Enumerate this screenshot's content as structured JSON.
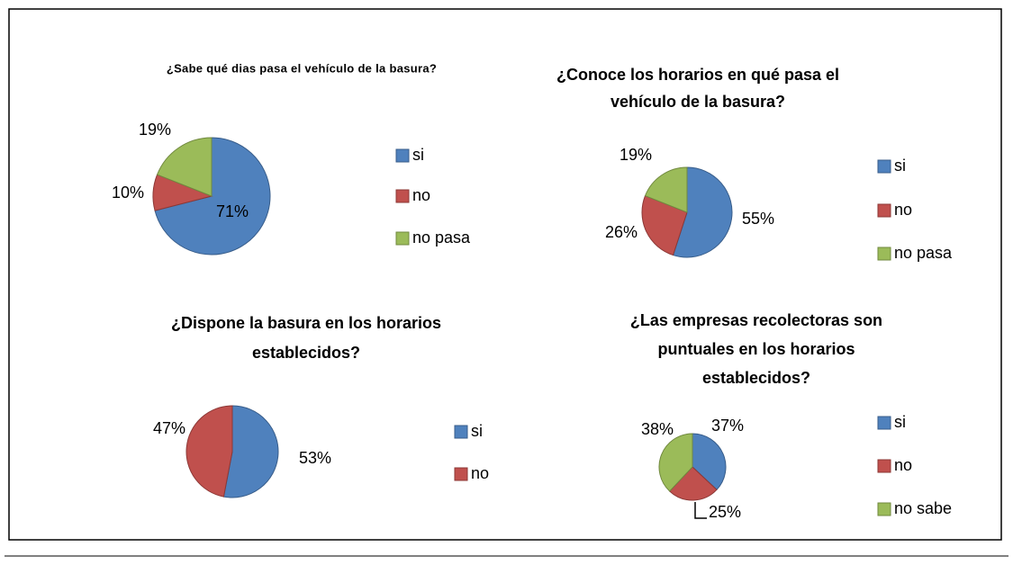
{
  "chart_data": [
    {
      "type": "pie",
      "title": [
        "¿Sabe qué dias pasa el vehículo de la basura?"
      ],
      "categories": [
        "si",
        "no",
        "no pasa"
      ],
      "values": [
        71,
        10,
        19
      ],
      "value_labels": [
        "71%",
        "10%",
        "19%"
      ],
      "colors": [
        "#4f81bd",
        "#c0504d",
        "#9bbb59"
      ],
      "legend": "right"
    },
    {
      "type": "pie",
      "title": [
        "¿Conoce los horarios en qué pasa el",
        "vehículo de la basura?"
      ],
      "categories": [
        "si",
        "no",
        "no pasa"
      ],
      "values": [
        55,
        26,
        19
      ],
      "value_labels": [
        "55%",
        "26%",
        "19%"
      ],
      "colors": [
        "#4f81bd",
        "#c0504d",
        "#9bbb59"
      ],
      "legend": "right"
    },
    {
      "type": "pie",
      "title": [
        "¿Dispone la basura en los horarios",
        "establecidos?"
      ],
      "categories": [
        "si",
        "no"
      ],
      "values": [
        53,
        47
      ],
      "value_labels": [
        "53%",
        "47%"
      ],
      "colors": [
        "#4f81bd",
        "#c0504d"
      ],
      "legend": "right"
    },
    {
      "type": "pie",
      "title": [
        "¿Las empresas recolectoras son",
        "puntuales en los horarios",
        "establecidos?"
      ],
      "categories": [
        "si",
        "no",
        "no sabe"
      ],
      "values": [
        37,
        25,
        38
      ],
      "value_labels": [
        "37%",
        "25%",
        "38%"
      ],
      "colors": [
        "#4f81bd",
        "#c0504d",
        "#9bbb59"
      ],
      "legend": "right"
    }
  ]
}
